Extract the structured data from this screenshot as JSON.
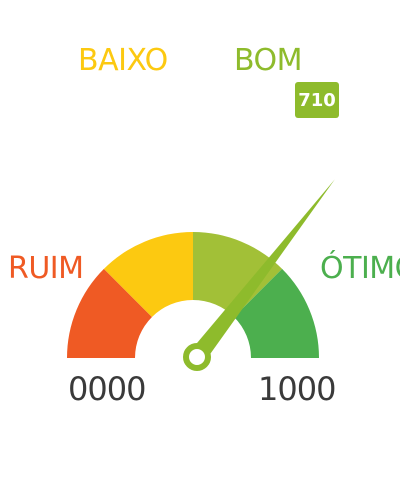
{
  "gauge": {
    "min_label": "0000",
    "max_label": "1000",
    "min_value": 0,
    "max_value": 1000,
    "score": "710",
    "score_value": 710,
    "segments": [
      {
        "label": "RUIM",
        "color": "#ef5a24",
        "label_color": "#ef5a24"
      },
      {
        "label": "BAIXO",
        "color": "#fcc911",
        "label_color": "#fcc911"
      },
      {
        "label": "BOM",
        "color": "#a2c037",
        "label_color": "#8ebb2c"
      },
      {
        "label": "ÓTIMO",
        "color": "#4caf4e",
        "label_color": "#4caf4e"
      }
    ],
    "needle_color": "#8ebb2c",
    "badge_color": "#8ebb2c",
    "end_label_color": "#3a3a3a"
  }
}
